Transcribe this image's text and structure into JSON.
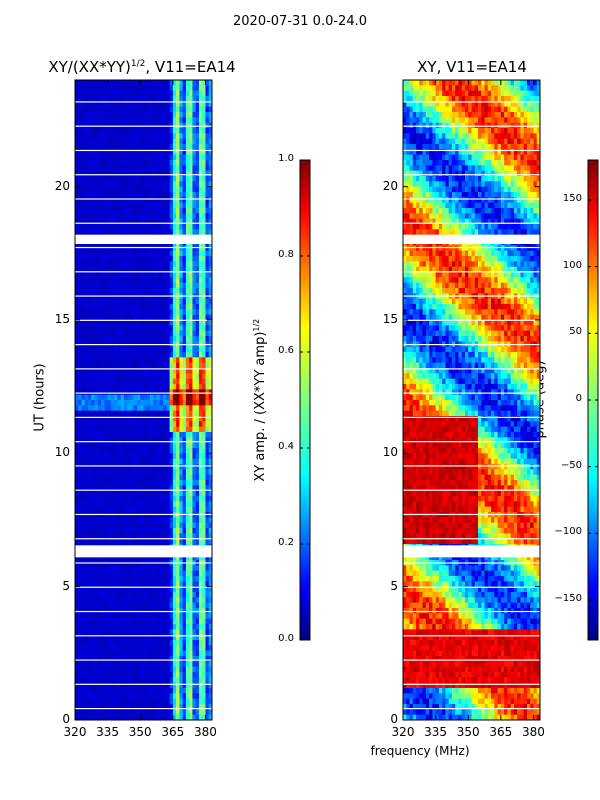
{
  "suptitle": "2020-07-31 0.0-24.0",
  "left_panel": {
    "title": "XY/(XX*YY)",
    "title_sup": "1/2",
    "title_suffix": ", V11=EA14"
  },
  "right_panel": {
    "title": "XY, V11=EA14"
  },
  "ylabel": "UT (hours)",
  "xlabel": "frequency (MHz)",
  "amp_colorbar": {
    "label_main": "XY amp. / (XX*YY amp)",
    "label_sup": "1/2"
  },
  "phase_colorbar": {
    "label": "phase (deg)"
  },
  "chart_data": [
    {
      "type": "heatmap",
      "title": "XY/(XX*YY)^(1/2), V11=EA14",
      "x_ticks": [
        "320",
        "335",
        "350",
        "365",
        "380"
      ],
      "x_tick_values": [
        320,
        335,
        350,
        365,
        380
      ],
      "xlim": [
        320,
        383
      ],
      "y_ticks": [
        "0",
        "5",
        "10",
        "15",
        "20"
      ],
      "y_tick_values": [
        0,
        5,
        10,
        15,
        20
      ],
      "ylim": [
        0,
        24
      ],
      "colorbar_ticks": [
        "0.0",
        "0.2",
        "0.4",
        "0.6",
        "0.8",
        "1.0"
      ],
      "colorbar_tick_values": [
        0.0,
        0.2,
        0.4,
        0.6,
        0.8,
        1.0
      ],
      "colorbar_range": [
        0,
        1
      ],
      "colormap": "jet",
      "data_gaps_hours": [
        [
          6.1,
          6.55
        ],
        [
          17.85,
          18.2
        ]
      ],
      "bright_band_mhz": [
        363,
        383
      ]
    },
    {
      "type": "heatmap",
      "title": "XY, V11=EA14",
      "x_ticks": [
        "320",
        "335",
        "350",
        "365",
        "380"
      ],
      "x_tick_values": [
        320,
        335,
        350,
        365,
        380
      ],
      "xlim": [
        320,
        383
      ],
      "y_ticks": [
        "0",
        "5",
        "10",
        "15",
        "20"
      ],
      "y_tick_values": [
        0,
        5,
        10,
        15,
        20
      ],
      "ylim": [
        0,
        24
      ],
      "colorbar_ticks": [
        "150",
        "100",
        "50",
        "0",
        "−50",
        "−100",
        "−150"
      ],
      "colorbar_tick_values": [
        150,
        100,
        50,
        0,
        -50,
        -100,
        -150
      ],
      "colorbar_range": [
        -180,
        180
      ],
      "colormap": "jet",
      "data_gaps_hours": [
        [
          6.1,
          6.55
        ],
        [
          17.85,
          18.2
        ]
      ]
    }
  ]
}
